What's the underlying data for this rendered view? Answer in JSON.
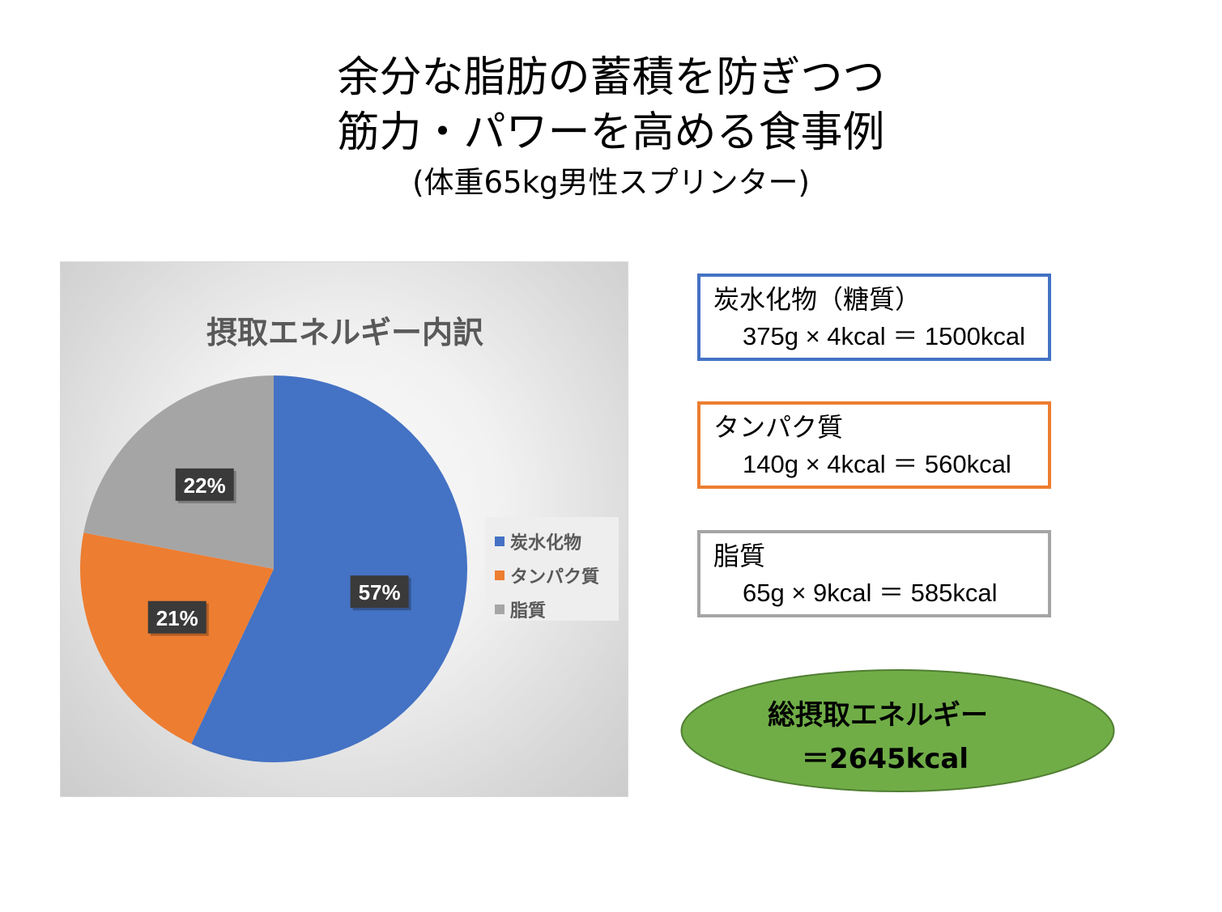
{
  "title": {
    "line1": "余分な脂肪の蓄積を防ぎつつ",
    "line2": "筋力・パワーを高める食事例",
    "subtitle": "(体重65kg男性スプリンター)"
  },
  "chart_data": {
    "type": "pie",
    "title": "摂取エネルギー内訳",
    "categories": [
      "炭水化物",
      "タンパク質",
      "脂質"
    ],
    "values": [
      57,
      21,
      22
    ],
    "labels": [
      "57%",
      "21%",
      "22%"
    ],
    "colors": [
      "#4472c4",
      "#ed7d31",
      "#a5a5a5"
    ],
    "legend": "right"
  },
  "boxes": [
    {
      "title": "炭水化物（糖質）",
      "formula": "375g × 4kcal ＝ 1500kcal",
      "color": "#4472c4"
    },
    {
      "title": "タンパク質",
      "formula": "140g × 4kcal ＝ 560kcal",
      "color": "#ed7d31"
    },
    {
      "title": "脂質",
      "formula": "65g × 9kcal ＝ 585kcal",
      "color": "#a5a5a5"
    }
  ],
  "total": {
    "title": "総摂取エネルギー",
    "value": "＝2645kcal",
    "color": "#70ad47"
  }
}
